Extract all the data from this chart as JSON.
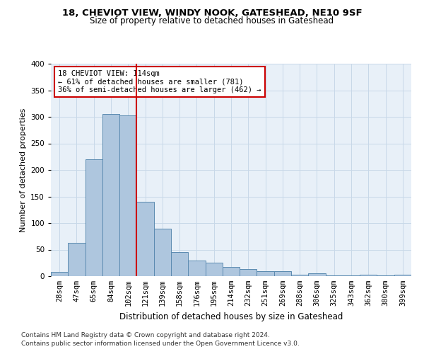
{
  "title1": "18, CHEVIOT VIEW, WINDY NOOK, GATESHEAD, NE10 9SF",
  "title2": "Size of property relative to detached houses in Gateshead",
  "xlabel": "Distribution of detached houses by size in Gateshead",
  "ylabel": "Number of detached properties",
  "categories": [
    "28sqm",
    "47sqm",
    "65sqm",
    "84sqm",
    "102sqm",
    "121sqm",
    "139sqm",
    "158sqm",
    "176sqm",
    "195sqm",
    "214sqm",
    "232sqm",
    "251sqm",
    "269sqm",
    "288sqm",
    "306sqm",
    "325sqm",
    "343sqm",
    "362sqm",
    "380sqm",
    "399sqm"
  ],
  "values": [
    8,
    63,
    220,
    305,
    303,
    140,
    90,
    46,
    30,
    25,
    18,
    14,
    10,
    10,
    3,
    5,
    2,
    2,
    3,
    2,
    3
  ],
  "bar_color": "#aec6de",
  "bar_edge_color": "#5a8ab0",
  "grid_color": "#c8d8e8",
  "bg_color": "#e8f0f8",
  "annotation_text": "18 CHEVIOT VIEW: 114sqm\n← 61% of detached houses are smaller (781)\n36% of semi-detached houses are larger (462) →",
  "vline_position": 4.5,
  "vline_color": "#cc0000",
  "annotation_box_color": "#cc0000",
  "ylim": [
    0,
    400
  ],
  "yticks": [
    0,
    50,
    100,
    150,
    200,
    250,
    300,
    350,
    400
  ],
  "footnote1": "Contains HM Land Registry data © Crown copyright and database right 2024.",
  "footnote2": "Contains public sector information licensed under the Open Government Licence v3.0.",
  "title1_fontsize": 9.5,
  "title2_fontsize": 8.5,
  "ylabel_fontsize": 8,
  "xlabel_fontsize": 8.5,
  "tick_fontsize": 7.5,
  "annot_fontsize": 7.5
}
